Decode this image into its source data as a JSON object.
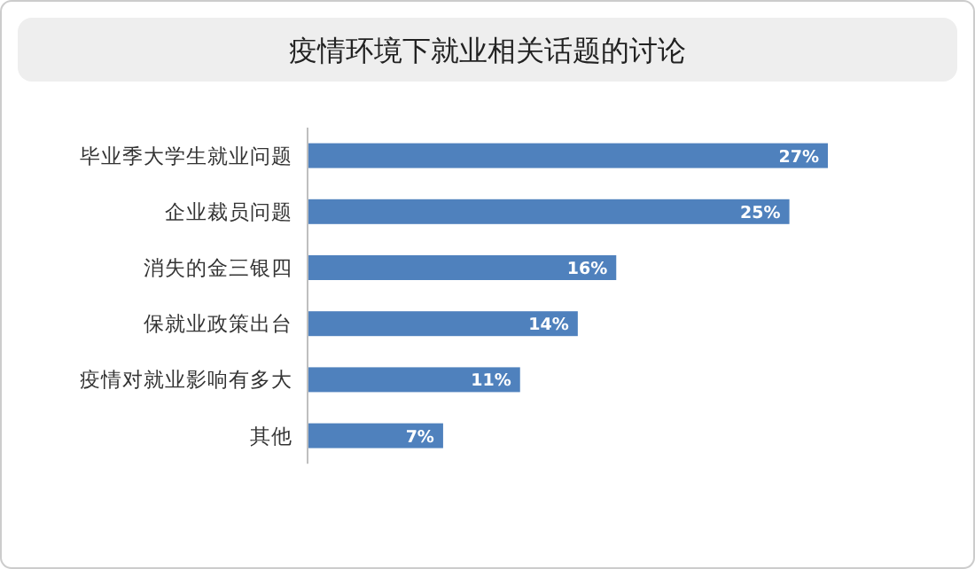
{
  "chart_data": {
    "type": "bar",
    "orientation": "horizontal",
    "title": "疫情环境下就业相关话题的讨论",
    "categories": [
      "毕业季大学生就业问题",
      "企业裁员问题",
      "消失的金三银四",
      "保就业政策出台",
      "疫情对就业影响有多大",
      "其他"
    ],
    "values": [
      27,
      25,
      16,
      14,
      11,
      7
    ],
    "value_labels": [
      "27%",
      "25%",
      "16%",
      "14%",
      "11%",
      "7%"
    ],
    "color": "#4f81bd"
  }
}
